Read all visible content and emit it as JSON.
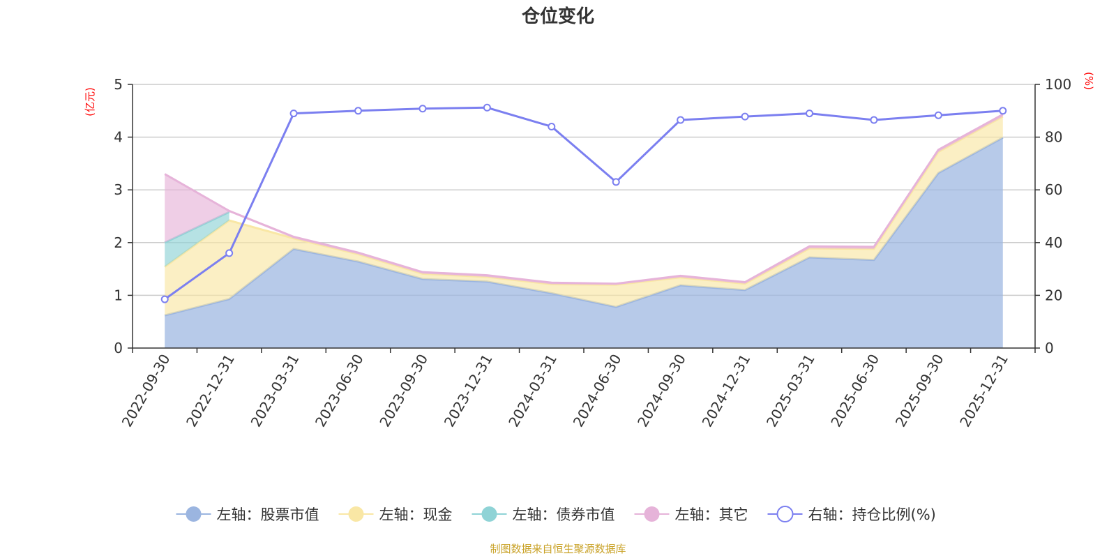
{
  "title": "仓位变化",
  "source": "制图数据来自恒生聚源数据库",
  "colors": {
    "stock": "#9bb5e0",
    "cash": "#f9e7a5",
    "bond": "#8fd3d6",
    "other": "#e6b3d9",
    "ratio": "#7b7ff0",
    "axis": "#333333",
    "grid": "#cccccc",
    "unit": "#ff0000",
    "source": "#c9a227"
  },
  "chart_data": {
    "type": "area",
    "title": "仓位变化",
    "left_axis": {
      "unit": "(亿元)",
      "range": [
        0,
        5
      ],
      "ticks": [
        "0",
        "1",
        "2",
        "3",
        "4",
        "5"
      ]
    },
    "right_axis": {
      "unit": "(%)",
      "range": [
        0,
        100
      ],
      "ticks": [
        "0",
        "20",
        "40",
        "60",
        "80",
        "100"
      ]
    },
    "categories": [
      "2022-09-30",
      "2022-12-31",
      "2023-03-31",
      "2023-06-30",
      "2023-09-30",
      "2023-12-31",
      "2024-03-31",
      "2024-06-30",
      "2024-09-30",
      "2024-12-31",
      "2025-03-31",
      "2025-06-30",
      "2025-09-30",
      "2025-12-31"
    ],
    "series": [
      {
        "name": "左轴：股票市值",
        "axis": "left",
        "kind": "stacked-area",
        "values": [
          0.62,
          0.93,
          1.88,
          1.64,
          1.31,
          1.26,
          1.04,
          0.78,
          1.19,
          1.1,
          1.72,
          1.67,
          3.32,
          3.99
        ]
      },
      {
        "name": "左轴：现金",
        "axis": "left",
        "kind": "stacked-area",
        "values": [
          0.92,
          1.49,
          0.2,
          0.14,
          0.1,
          0.09,
          0.17,
          0.42,
          0.15,
          0.12,
          0.17,
          0.21,
          0.4,
          0.4
        ]
      },
      {
        "name": "左轴：债券市值",
        "axis": "left",
        "kind": "stacked-area",
        "values": [
          0.46,
          0.16,
          0.0,
          0.0,
          0.0,
          0.0,
          0.0,
          0.0,
          0.0,
          0.0,
          0.0,
          0.0,
          0.0,
          0.0
        ]
      },
      {
        "name": "左轴：其它",
        "axis": "left",
        "kind": "stacked-area",
        "values": [
          1.3,
          0.02,
          0.03,
          0.03,
          0.03,
          0.03,
          0.03,
          0.02,
          0.03,
          0.03,
          0.04,
          0.04,
          0.04,
          0.04
        ]
      },
      {
        "name": "右轴：持仓比例(%)",
        "axis": "right",
        "kind": "line",
        "values": [
          18.5,
          36.0,
          89.0,
          90.0,
          90.8,
          91.2,
          84.0,
          63.0,
          86.5,
          87.8,
          89.0,
          86.5,
          88.3,
          90.0
        ]
      }
    ],
    "grid": true,
    "legend_position": "bottom"
  }
}
